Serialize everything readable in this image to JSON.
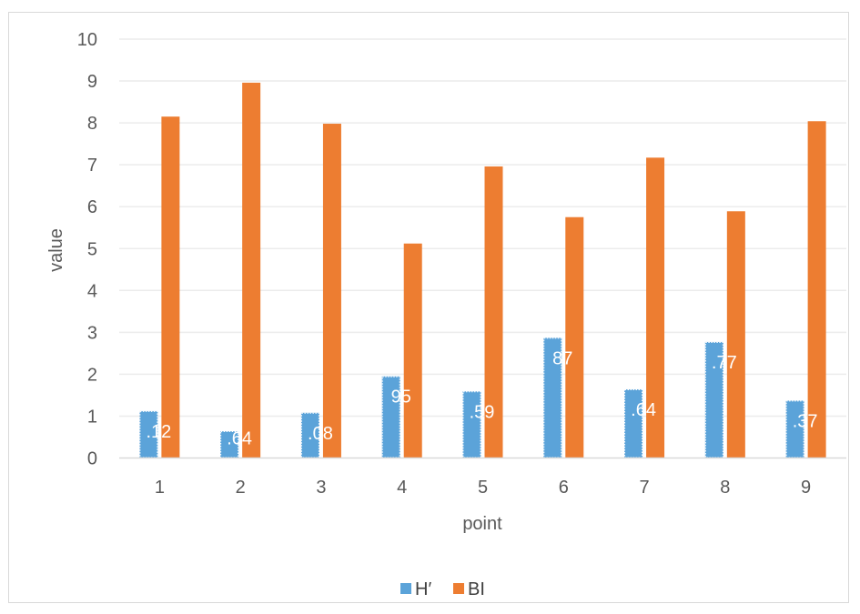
{
  "chart_data": {
    "type": "bar",
    "categories": [
      "1",
      "2",
      "3",
      "4",
      "5",
      "6",
      "7",
      "8",
      "9"
    ],
    "series": [
      {
        "name": "H′",
        "color": "#5ba3d9",
        "values": [
          1.12,
          0.64,
          1.08,
          1.95,
          1.59,
          2.87,
          1.64,
          2.77,
          1.37
        ],
        "data_labels": [
          ".12",
          ".64",
          ".08",
          "95",
          ".59",
          "87",
          ".64",
          ".77",
          ".37"
        ]
      },
      {
        "name": "BI",
        "color": "#ed7d31",
        "values": [
          8.15,
          8.96,
          7.98,
          5.12,
          6.96,
          5.75,
          7.17,
          5.89,
          8.04
        ]
      }
    ],
    "xlabel": "point",
    "ylabel": "value",
    "ylim": [
      0,
      10
    ],
    "yticks": [
      "0",
      "1",
      "2",
      "3",
      "4",
      "5",
      "6",
      "7",
      "8",
      "9",
      "10"
    ],
    "grid": true,
    "legend_position": "bottom"
  }
}
